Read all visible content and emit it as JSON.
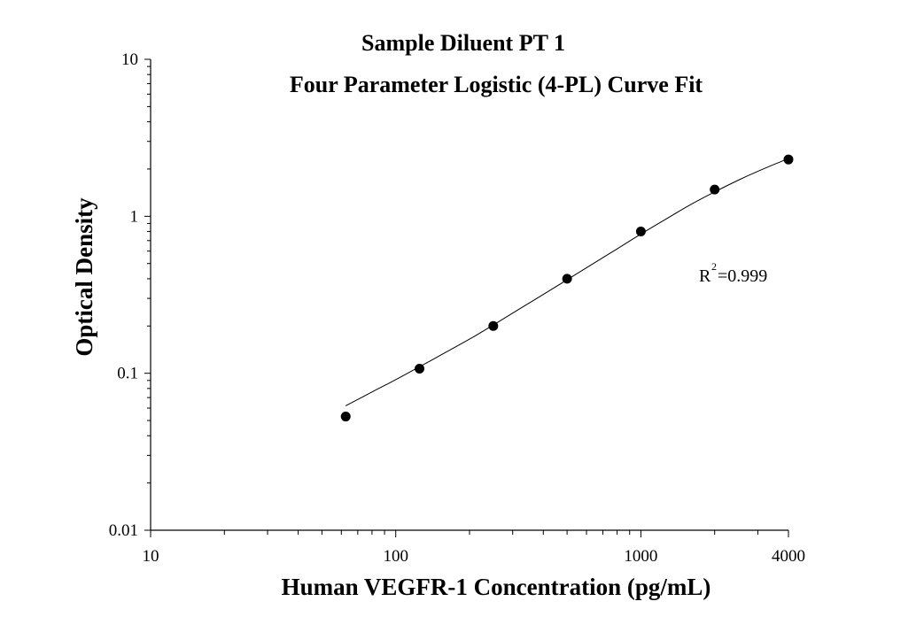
{
  "chart_data": {
    "type": "scatter",
    "title": "Sample Diluent PT 1",
    "subtitle": "Four Parameter Logistic (4-PL) Curve Fit",
    "xlabel": "Human VEGFR-1 Concentration (pg/mL)",
    "ylabel": "Optical Density",
    "x_scale": "log",
    "y_scale": "log",
    "xlim": [
      10,
      4000
    ],
    "ylim": [
      0.01,
      10
    ],
    "x_ticks": [
      {
        "value": 10,
        "label": "10"
      },
      {
        "value": 100,
        "label": "100"
      },
      {
        "value": 1000,
        "label": "1000"
      },
      {
        "value": 4000,
        "label": "4000"
      }
    ],
    "y_ticks": [
      {
        "value": 0.01,
        "label": "0.01"
      },
      {
        "value": 0.1,
        "label": "0.1"
      },
      {
        "value": 1,
        "label": "1"
      },
      {
        "value": 10,
        "label": "10"
      }
    ],
    "grid": false,
    "series": [
      {
        "x": [
          62.5,
          125,
          250,
          500,
          1000,
          2000,
          4000
        ],
        "y": [
          0.053,
          0.107,
          0.2,
          0.4,
          0.8,
          1.48,
          2.3
        ]
      }
    ],
    "fit_curve": [
      [
        62.5,
        0.062
      ],
      [
        80,
        0.076
      ],
      [
        100,
        0.091
      ],
      [
        125,
        0.11
      ],
      [
        160,
        0.136
      ],
      [
        200,
        0.165
      ],
      [
        250,
        0.203
      ],
      [
        320,
        0.257
      ],
      [
        400,
        0.318
      ],
      [
        500,
        0.394
      ],
      [
        640,
        0.5
      ],
      [
        800,
        0.62
      ],
      [
        1000,
        0.77
      ],
      [
        1280,
        0.97
      ],
      [
        1600,
        1.19
      ],
      [
        2000,
        1.43
      ],
      [
        2560,
        1.73
      ],
      [
        3200,
        2.02
      ],
      [
        4000,
        2.33
      ]
    ],
    "annotation": {
      "base": "R",
      "sup": "2",
      "rest": "=0.999"
    }
  }
}
